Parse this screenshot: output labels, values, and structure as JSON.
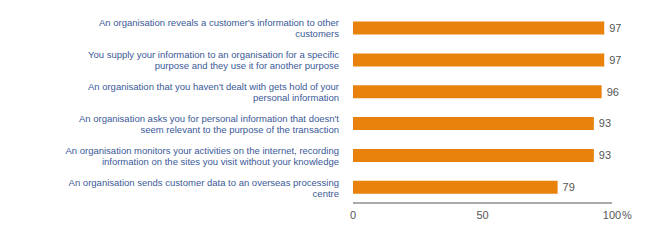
{
  "chart_data": {
    "type": "bar",
    "orientation": "horizontal",
    "categories": [
      "An organisation reveals a customer's information to other\ncustomers",
      "You supply your information to an organisation for a specific\npurpose and they use it for another purpose",
      "An organisation that you haven't dealt with gets hold of your\npersonal information",
      "An organisation asks you for personal information that doesn't\nseem relevant to the purpose of the transaction",
      "An organisation monitors your activities on the internet, recording\ninformation on the sites you visit without your knowledge",
      "An organisation sends customer data to an overseas processing\ncentre"
    ],
    "values": [
      97,
      97,
      96,
      93,
      93,
      79
    ],
    "color": "#E8820C",
    "xlim": [
      0,
      100
    ],
    "xticks": [
      0,
      50,
      100
    ],
    "data_labels": true,
    "annotations": [
      "%"
    ],
    "grid": false
  }
}
